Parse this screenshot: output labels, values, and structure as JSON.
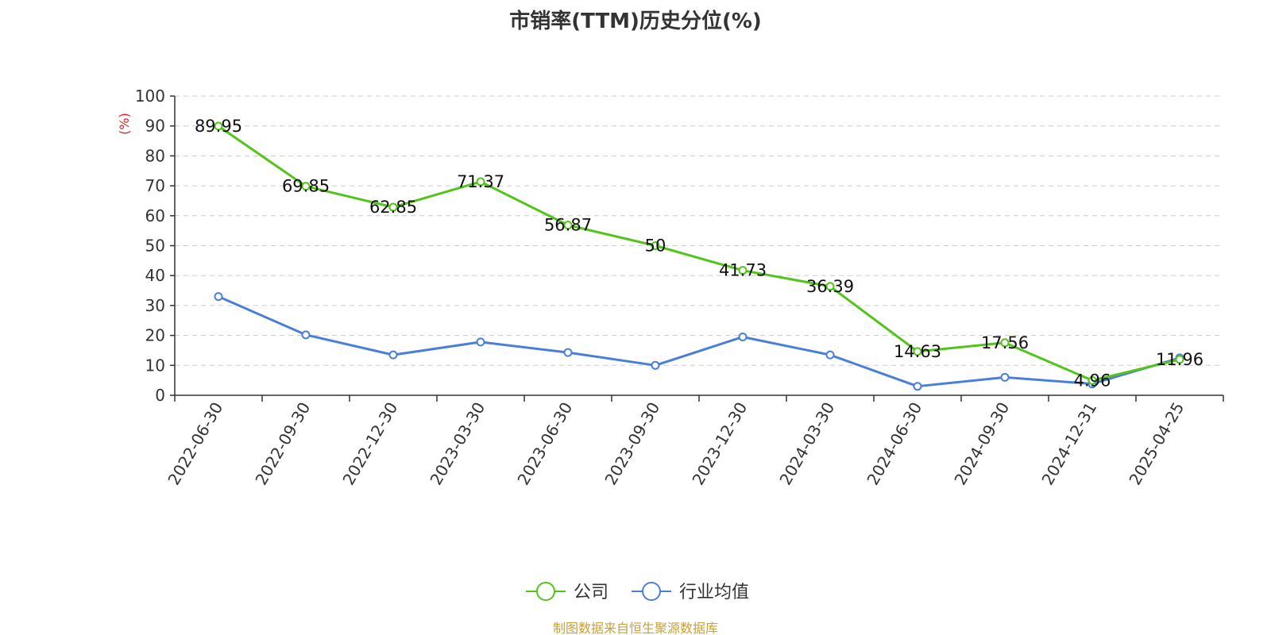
{
  "chart_data": {
    "type": "line",
    "title": "市销率(TTM)历史分位(%)",
    "ylabel": "(%)",
    "ylim": [
      0,
      100
    ],
    "yticks": [
      0,
      10,
      20,
      30,
      40,
      50,
      60,
      70,
      80,
      90,
      100
    ],
    "grid": true,
    "legend_position": "bottom",
    "categories": [
      "2022-06-30",
      "2022-09-30",
      "2022-12-30",
      "2023-03-30",
      "2023-06-30",
      "2023-09-30",
      "2023-12-30",
      "2024-03-30",
      "2024-06-30",
      "2024-09-30",
      "2024-12-31",
      "2025-04-25"
    ],
    "series": [
      {
        "name": "公司",
        "color": "#52c41a",
        "values": [
          89.95,
          69.85,
          62.85,
          71.37,
          56.87,
          50,
          41.73,
          36.39,
          14.63,
          17.56,
          4.96,
          11.96
        ],
        "labels": [
          "89.95",
          "69.85",
          "62.85",
          "71.37",
          "56.87",
          "50",
          "41.73",
          "36.39",
          "14.63",
          "17.56",
          "4.96",
          "11.96"
        ]
      },
      {
        "name": "行业均值",
        "color": "#4a7fd9",
        "values": [
          33,
          20.2,
          13.5,
          17.8,
          14.3,
          10,
          19.5,
          13.5,
          3,
          6,
          3.8,
          12.5
        ]
      }
    ]
  },
  "source": "制图数据来自恒生聚源数据库",
  "colors": {
    "axis": "#333333",
    "grid": "#cccccc",
    "ylabel": "#e02020",
    "source": "#c9a13b"
  }
}
